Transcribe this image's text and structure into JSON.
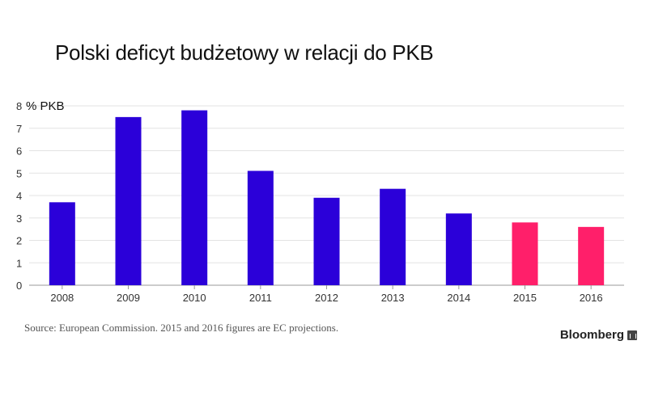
{
  "chart_data": {
    "type": "bar",
    "title": "Polski deficyt budżetowy w relacji do PKB",
    "ylabel": "% PKB",
    "categories": [
      "2008",
      "2009",
      "2010",
      "2011",
      "2012",
      "2013",
      "2014",
      "2015",
      "2016"
    ],
    "values": [
      3.7,
      7.5,
      7.8,
      5.1,
      3.9,
      4.3,
      3.2,
      2.8,
      2.6
    ],
    "projection": [
      false,
      false,
      false,
      false,
      false,
      false,
      false,
      true,
      true
    ],
    "ylim": [
      0,
      8
    ],
    "yticks": [
      0,
      1,
      2,
      3,
      4,
      5,
      6,
      7,
      8
    ],
    "grid": true,
    "colors": {
      "actual": "#2b00d9",
      "projection": "#ff1f6a",
      "grid": "#e3e3e3",
      "axis": "#999999"
    }
  },
  "footer": {
    "source": "Source: European Commission. 2015 and 2016 figures are EC projections.",
    "brand": "Bloomberg",
    "brand_icon": "bloomberg-chart-icon"
  }
}
